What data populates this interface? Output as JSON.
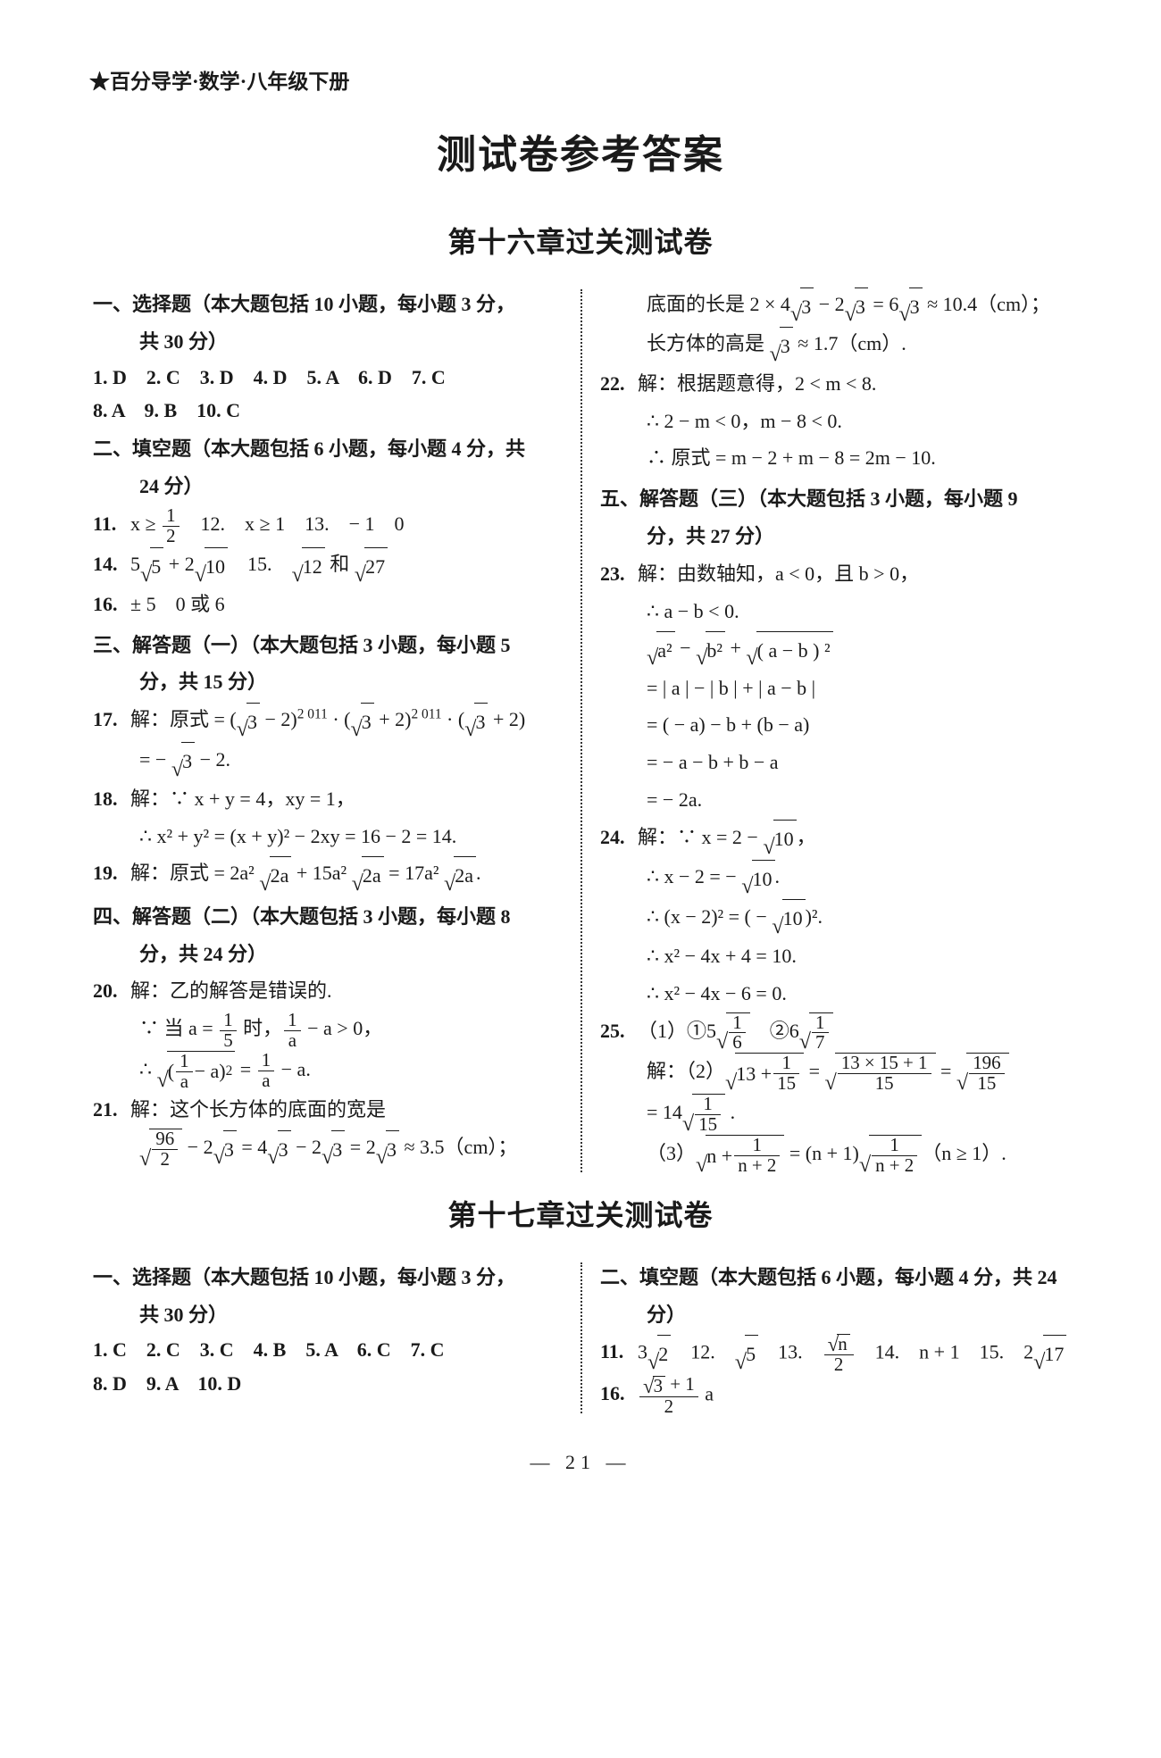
{
  "doc": {
    "series": "★百分导学·数学·八年级下册",
    "mainTitle": "测试卷参考答案",
    "chapter16": "第十六章过关测试卷",
    "chapter17": "第十七章过关测试卷",
    "pageNum": "— 21 —",
    "colors": {
      "text": "#1a1a1a",
      "bg": "#ffffff",
      "divider": "#333333"
    },
    "typography": {
      "bodyPt": 22,
      "mainTitlePt": 44,
      "chapterTitlePt": 32,
      "fontFamily": "SimSun/STSong serif",
      "lineHeight": 1.9
    },
    "layout": {
      "widthPx": 1300,
      "heightPx": 1969,
      "columns": 2,
      "dividerStyle": "dotted"
    }
  },
  "c16": {
    "left": {
      "s1_hdr": "一、选择题（本大题包括 10 小题，每小题 3 分，",
      "s1_hdr_b": "共 30 分）",
      "s1_ans_a": "1. D　2. C　3. D　4. D　5. A　6. D　7. C",
      "s1_ans_b": "8. A　9. B　10. C",
      "s2_hdr": "二、填空题（本大题包括 6 小题，每小题 4 分，共",
      "s2_hdr_b": "24 分）",
      "q11_lbl": "11.",
      "q11_a": "x ≥ ",
      "q11_frac_n": "1",
      "q11_frac_d": "2",
      "q11_tail": "　12.　x ≥ 1　13.　− 1　0",
      "q14_lbl": "14.",
      "q14_a": "5",
      "q14_r1": "5",
      "q14_b": " + 2",
      "q14_r2": "10",
      "q14_c": "　15.　",
      "q14_r3": "12",
      "q14_d": " 和 ",
      "q14_r4": "27",
      "q16_lbl": "16.",
      "q16_a": "± 5　0 或 6",
      "s3_hdr": "三、解答题（一）（本大题包括 3 小题，每小题 5",
      "s3_hdr_b": "分，共 15 分）",
      "q17_lbl": "17.",
      "q17_a": "解：原式 = (",
      "q17_r1": "3",
      "q17_b": " − 2)",
      "q17_p1": "2 011",
      "q17_c": " · (",
      "q17_r2": "3",
      "q17_d": " + 2)",
      "q17_p2": "2 011",
      "q17_e": " · (",
      "q17_r3": "3",
      "q17_f": " + 2)",
      "q17_2a": "= − ",
      "q17_2r": "3",
      "q17_2b": " − 2.",
      "q18_lbl": "18.",
      "q18_a": "解：∵ x + y = 4，xy = 1，",
      "q18_2": "∴ x² + y² = (x + y)² − 2xy = 16 − 2 = 14.",
      "q19_lbl": "19.",
      "q19_a": "解：原式 = 2a² ",
      "q19_r1": "2a",
      "q19_b": " + 15a² ",
      "q19_r2": "2a",
      "q19_c": " = 17a² ",
      "q19_r3": "2a",
      "q19_d": ".",
      "s4_hdr": "四、解答题（二）（本大题包括 3 小题，每小题 8",
      "s4_hdr_b": "分，共 24 分）",
      "q20_lbl": "20.",
      "q20_a": "解：乙的解答是错误的.",
      "q20_2a": "∵ 当 a = ",
      "q20_2fn": "1",
      "q20_2fd": "5",
      "q20_2b": " 时，",
      "q20_2fn2": "1",
      "q20_2fd2": "a",
      "q20_2c": " − a > 0，",
      "q20_3a": "∴ ",
      "q20_3lp": "(",
      "q20_3fn": "1",
      "q20_3fd": "a",
      "q20_3mid": " − a)",
      "q20_3sup": "2",
      "q20_3eq": " = ",
      "q20_3fn2": "1",
      "q20_3fd2": "a",
      "q20_3tail": " − a.",
      "q21_lbl": "21.",
      "q21_a": "解：这个长方体的底面的宽是",
      "q21_2fn": "96",
      "q21_2fd": "2",
      "q21_2a": " − 2",
      "q21_2r1": "3",
      "q21_2b": " = 4",
      "q21_2r2": "3",
      "q21_2c": " − 2",
      "q21_2r3": "3",
      "q21_2d": " = 2",
      "q21_2r4": "3",
      "q21_2e": " ≈ 3.5（cm）；"
    },
    "right": {
      "r21_a": "底面的长是 2 × 4",
      "r21_r1": "3",
      "r21_b": " − 2",
      "r21_r2": "3",
      "r21_c": " = 6",
      "r21_r3": "3",
      "r21_d": " ≈ 10.4（cm）；",
      "r21_2a": "长方体的高是 ",
      "r21_2r": "3",
      "r21_2b": " ≈ 1.7（cm）.",
      "q22_lbl": "22.",
      "q22_a": "解：根据题意得，2 < m < 8.",
      "q22_2": "∴ 2 − m < 0，m − 8 < 0.",
      "q22_3": "∴ 原式 = m − 2 + m − 8 = 2m − 10.",
      "s5_hdr": "五、解答题（三）（本大题包括 3 小题，每小题 9",
      "s5_hdr_b": "分，共 27 分）",
      "q23_lbl": "23.",
      "q23_a": "解：由数轴知，a < 0，且 b > 0，",
      "q23_2": "∴ a − b < 0.",
      "q23_3r1": "a²",
      "q23_3a": " − ",
      "q23_3r2": "b²",
      "q23_3b": " + ",
      "q23_3r3": "( a − b ) ²",
      "q23_4": "= | a | − | b | + | a − b |",
      "q23_5": "= ( − a) − b + (b − a)",
      "q23_6": "= − a − b + b − a",
      "q23_7": "= − 2a.",
      "q24_lbl": "24.",
      "q24_a": "解：∵ x = 2 − ",
      "q24_r1": "10",
      "q24_b": "，",
      "q24_2a": "∴ x − 2 = − ",
      "q24_2r": "10",
      "q24_2b": ".",
      "q24_3a": "∴ (x − 2)² = ( − ",
      "q24_3r": "10",
      "q24_3b": ")².",
      "q24_4": "∴ x² − 4x + 4 = 10.",
      "q24_5": "∴ x² − 4x − 6 = 0.",
      "q25_lbl": "25.",
      "q25_1a": "（1）①5",
      "q25_1fn1": "1",
      "q25_1fd1": "6",
      "q25_1b": "　②6",
      "q25_1fn2": "1",
      "q25_1fd2": "7",
      "q25_2a": "解：（2）",
      "q25_2arg1a": "13 + ",
      "q25_2fn1": "1",
      "q25_2fd1": "15",
      "q25_2eq1": " = ",
      "q25_2fn2": "13 × 15 + 1",
      "q25_2fd2": "15",
      "q25_2eq2": " = ",
      "q25_2fn3": "196",
      "q25_2fd3": "15",
      "q25_3a": "= 14",
      "q25_3fn": "1",
      "q25_3fd": "15",
      "q25_3b": " .",
      "q25_4a": "（3）",
      "q25_4arg_a": "n + ",
      "q25_4fn1": "1",
      "q25_4fd1": "n + 2",
      "q25_4eq": " = (n + 1)",
      "q25_4fn2": "1",
      "q25_4fd2": "n + 2",
      "q25_4tail": "（n ≥ 1）."
    }
  },
  "c17": {
    "left": {
      "s1_hdr": "一、选择题（本大题包括 10 小题，每小题 3 分，",
      "s1_hdr_b": "共 30 分）",
      "s1_ans_a": "1. C　2. C　3. C　4. B　5. A　6. C　7. C",
      "s1_ans_b": "8. D　9. A　10. D"
    },
    "right": {
      "s2_hdr": "二、填空题（本大题包括 6 小题，每小题 4 分，共 24",
      "s2_hdr_b": "分）",
      "q11_lbl": "11.",
      "q11_a": "3",
      "q11_r1": "2",
      "q11_b": "　12.　",
      "q11_r2": "5",
      "q11_c": "　13.　",
      "q11_fn": "√n",
      "q11_fn_r": "n",
      "q11_fd": "2",
      "q11_d": "　14.　n + 1　15.　2",
      "q11_r3": "17",
      "q16_lbl": "16.",
      "q16_fn_r": "3",
      "q16_fn_b": " + 1",
      "q16_fd": "2",
      "q16_tail": " a"
    }
  }
}
